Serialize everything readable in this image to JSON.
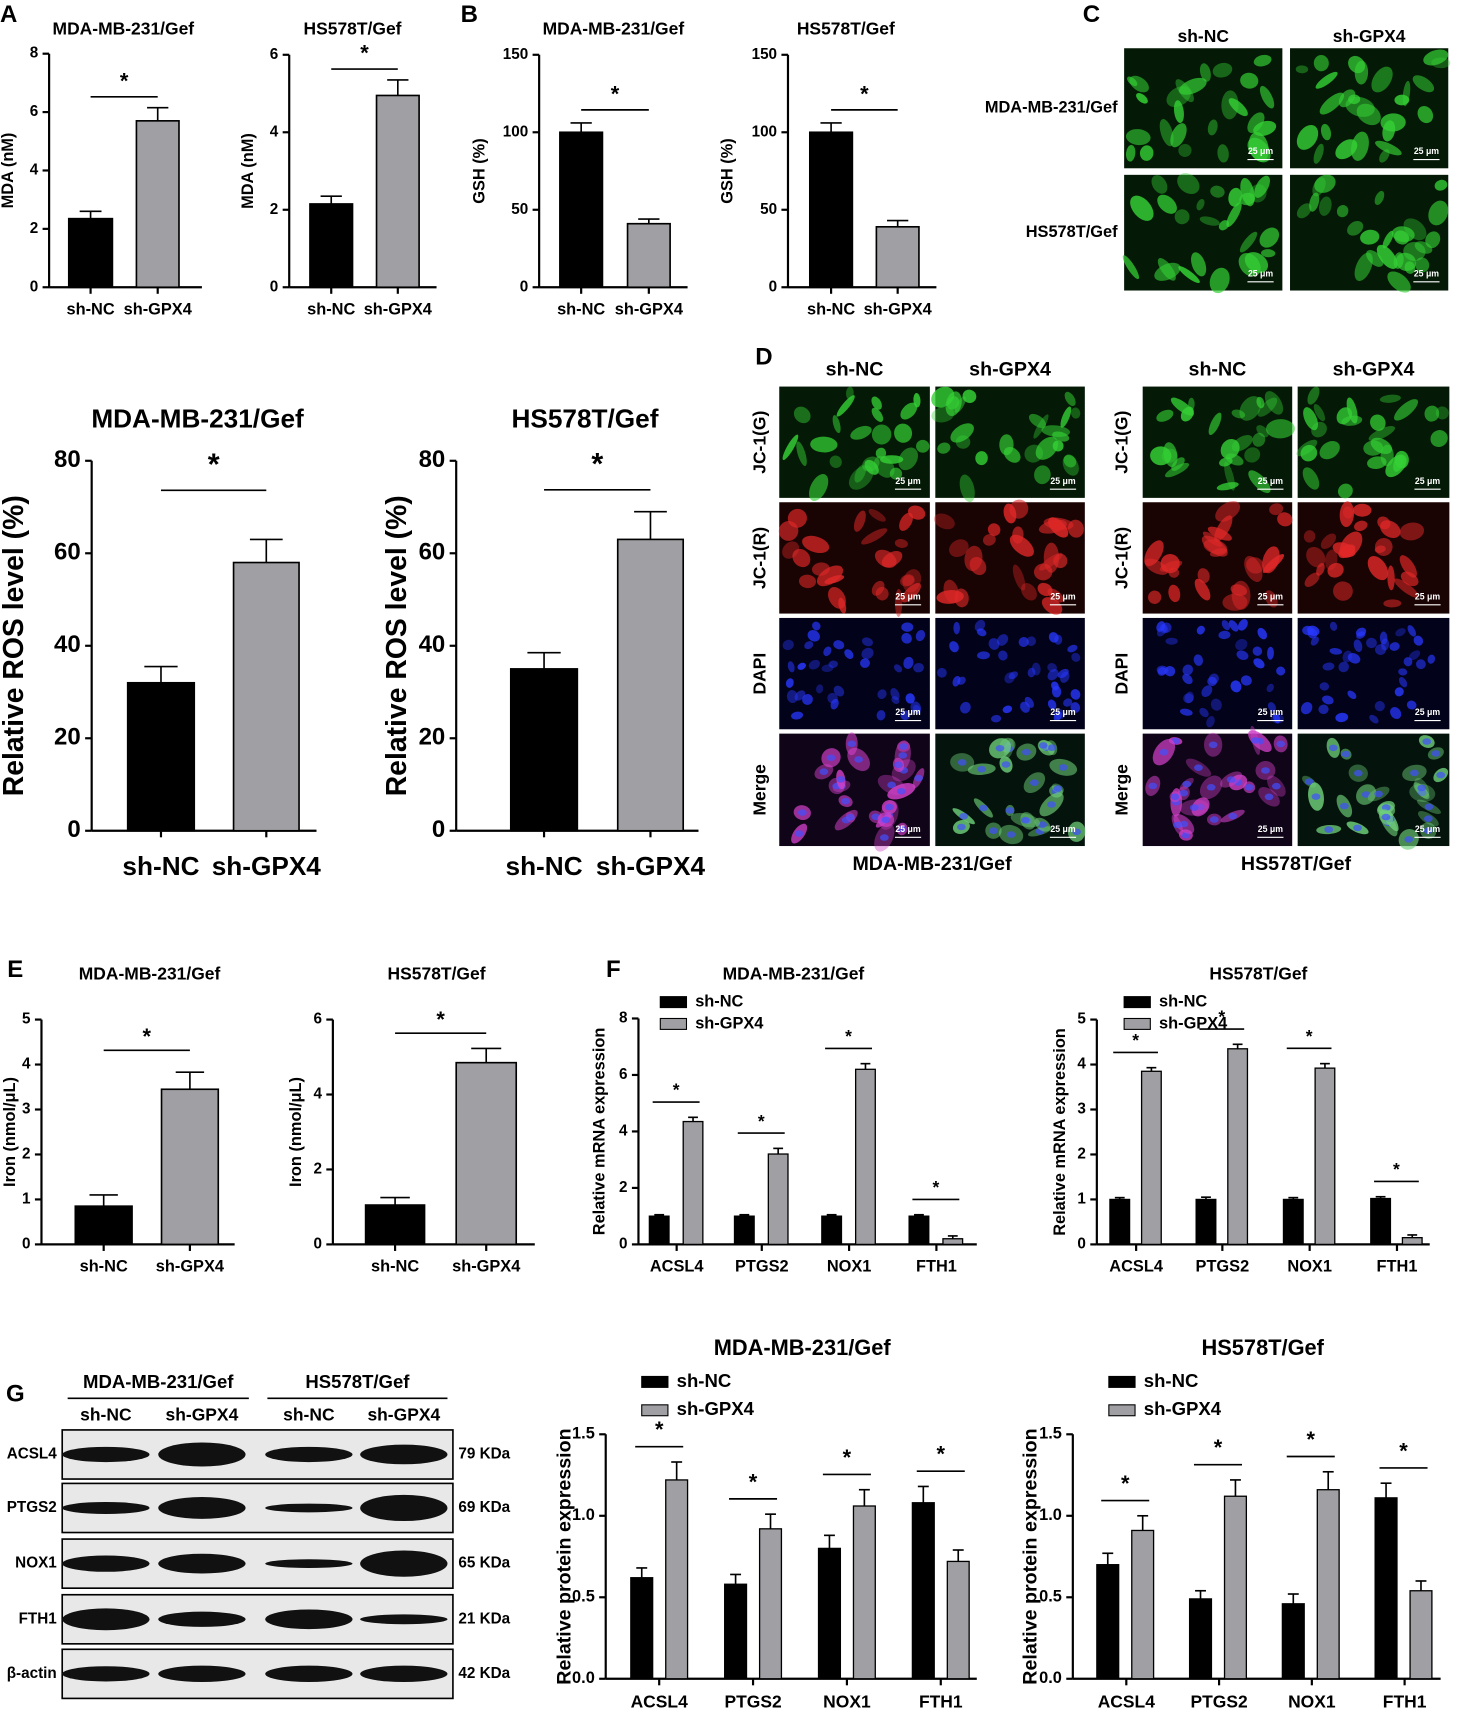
{
  "panel_labels": [
    "A",
    "B",
    "C",
    "D",
    "E",
    "F",
    "G"
  ],
  "chart_data": [
    {
      "type": "bar",
      "title": "MDA-MB-231/Gef",
      "y_label": "MDA (nM)",
      "categories": [
        "sh-NC",
        "sh-GPX4"
      ],
      "values": [
        2.35,
        5.7
      ],
      "errors": [
        0.25,
        0.45
      ],
      "colors": [
        "#000000",
        "#a0a0a4"
      ],
      "ylim": [
        0,
        8
      ],
      "yticks": [
        0,
        2,
        4,
        6,
        8
      ],
      "significance": "*"
    },
    {
      "type": "bar",
      "title": "HS578T/Gef",
      "y_label": "MDA (nM)",
      "categories": [
        "sh-NC",
        "sh-GPX4"
      ],
      "values": [
        2.15,
        4.95
      ],
      "errors": [
        0.2,
        0.4
      ],
      "colors": [
        "#000000",
        "#a0a0a4"
      ],
      "ylim": [
        0,
        6
      ],
      "yticks": [
        0,
        2,
        4,
        6
      ],
      "significance": "*"
    },
    {
      "type": "bar",
      "title": "MDA-MB-231/Gef",
      "y_label": "GSH (%)",
      "categories": [
        "sh-NC",
        "sh-GPX4"
      ],
      "values": [
        100,
        41
      ],
      "errors": [
        6,
        3
      ],
      "colors": [
        "#000000",
        "#a0a0a4"
      ],
      "ylim": [
        0,
        150
      ],
      "yticks": [
        0,
        50,
        100,
        150
      ],
      "significance": "*"
    },
    {
      "type": "bar",
      "title": "HS578T/Gef",
      "y_label": "GSH (%)",
      "categories": [
        "sh-NC",
        "sh-GPX4"
      ],
      "values": [
        100,
        39
      ],
      "errors": [
        6,
        4
      ],
      "colors": [
        "#000000",
        "#a0a0a4"
      ],
      "ylim": [
        0,
        150
      ],
      "yticks": [
        0,
        50,
        100,
        150
      ],
      "significance": "*"
    },
    {
      "type": "bar",
      "title": "MDA-MB-231/Gef",
      "y_label": "Relative ROS level (%)",
      "categories": [
        "sh-NC",
        "sh-GPX4"
      ],
      "values": [
        32,
        58
      ],
      "errors": [
        3.5,
        5
      ],
      "colors": [
        "#000000",
        "#a0a0a4"
      ],
      "ylim": [
        0,
        80
      ],
      "yticks": [
        0,
        20,
        40,
        60,
        80
      ],
      "significance": "*"
    },
    {
      "type": "bar",
      "title": "HS578T/Gef",
      "y_label": "Relative ROS level (%)",
      "categories": [
        "sh-NC",
        "sh-GPX4"
      ],
      "values": [
        35,
        63
      ],
      "errors": [
        3.5,
        6
      ],
      "colors": [
        "#000000",
        "#a0a0a4"
      ],
      "ylim": [
        0,
        80
      ],
      "yticks": [
        0,
        20,
        40,
        60,
        80
      ],
      "significance": "*"
    },
    {
      "type": "bar",
      "title": "MDA-MB-231/Gef",
      "y_label": "Iron (nmol/μL)",
      "categories": [
        "sh-NC",
        "sh-GPX4"
      ],
      "values": [
        0.85,
        3.45
      ],
      "errors": [
        0.25,
        0.38
      ],
      "colors": [
        "#000000",
        "#a0a0a4"
      ],
      "ylim": [
        0,
        5
      ],
      "yticks": [
        0,
        1,
        2,
        3,
        4,
        5
      ],
      "significance": "*"
    },
    {
      "type": "bar",
      "title": "HS578T/Gef",
      "y_label": "Iron (nmol/μL)",
      "categories": [
        "sh-NC",
        "sh-GPX4"
      ],
      "values": [
        1.05,
        4.85
      ],
      "errors": [
        0.2,
        0.38
      ],
      "colors": [
        "#000000",
        "#a0a0a4"
      ],
      "ylim": [
        0,
        6
      ],
      "yticks": [
        0,
        2,
        4,
        6
      ],
      "significance": "*"
    },
    {
      "type": "grouped_bar",
      "title": "MDA-MB-231/Gef",
      "y_label": "Relative mRNA expression",
      "categories": [
        "ACSL4",
        "PTGS2",
        "NOX1",
        "FTH1"
      ],
      "series": [
        {
          "name": "sh-NC",
          "color": "#000000",
          "values": [
            1,
            1,
            1,
            1
          ],
          "errors": [
            0.05,
            0.05,
            0.05,
            0.05
          ]
        },
        {
          "name": "sh-GPX4",
          "color": "#a0a0a4",
          "values": [
            4.35,
            3.2,
            6.2,
            0.2
          ],
          "errors": [
            0.15,
            0.2,
            0.2,
            0.1
          ]
        }
      ],
      "ylim": [
        0,
        8
      ],
      "yticks": [
        0,
        2,
        4,
        6,
        8
      ],
      "significance": [
        "*",
        "*",
        "*",
        "*"
      ]
    },
    {
      "type": "grouped_bar",
      "title": "HS578T/Gef",
      "y_label": "Relative mRNA expression",
      "categories": [
        "ACSL4",
        "PTGS2",
        "NOX1",
        "FTH1"
      ],
      "series": [
        {
          "name": "sh-NC",
          "color": "#000000",
          "values": [
            1,
            1,
            1,
            1.02
          ],
          "errors": [
            0.04,
            0.05,
            0.04,
            0.04
          ]
        },
        {
          "name": "sh-GPX4",
          "color": "#a0a0a4",
          "values": [
            3.85,
            4.35,
            3.92,
            0.15
          ],
          "errors": [
            0.08,
            0.1,
            0.1,
            0.06
          ]
        }
      ],
      "ylim": [
        0,
        5
      ],
      "yticks": [
        0,
        1,
        2,
        3,
        4,
        5
      ],
      "significance": [
        "*",
        "*",
        "*",
        "*"
      ]
    },
    {
      "type": "grouped_bar",
      "title": "MDA-MB-231/Gef",
      "y_label": "Relative protein expression",
      "categories": [
        "ACSL4",
        "PTGS2",
        "NOX1",
        "FTH1"
      ],
      "series": [
        {
          "name": "sh-NC",
          "color": "#000000",
          "values": [
            0.62,
            0.58,
            0.8,
            1.08
          ],
          "errors": [
            0.06,
            0.06,
            0.08,
            0.1
          ]
        },
        {
          "name": "sh-GPX4",
          "color": "#a0a0a4",
          "values": [
            1.22,
            0.92,
            1.06,
            0.72
          ],
          "errors": [
            0.11,
            0.09,
            0.1,
            0.07
          ]
        }
      ],
      "ylim": [
        0,
        1.5
      ],
      "yticks": [
        {
          "value": 0,
          "label": "0.0"
        },
        0.5,
        {
          "value": 1,
          "label": "1.0"
        },
        1.5
      ],
      "significance": [
        "*",
        "*",
        "*",
        "*"
      ]
    },
    {
      "type": "grouped_bar",
      "title": "HS578T/Gef",
      "y_label": "Relative protein expression",
      "categories": [
        "ACSL4",
        "PTGS2",
        "NOX1",
        "FTH1"
      ],
      "series": [
        {
          "name": "sh-NC",
          "color": "#000000",
          "values": [
            0.7,
            0.49,
            0.46,
            1.11
          ],
          "errors": [
            0.07,
            0.05,
            0.06,
            0.09
          ]
        },
        {
          "name": "sh-GPX4",
          "color": "#a0a0a4",
          "values": [
            0.91,
            1.12,
            1.16,
            0.54
          ],
          "errors": [
            0.09,
            0.1,
            0.11,
            0.06
          ]
        }
      ],
      "ylim": [
        0,
        1.5
      ],
      "yticks": [
        {
          "value": 0,
          "label": "0.0"
        },
        0.5,
        {
          "value": 1,
          "label": "1.0"
        },
        1.5
      ],
      "significance": [
        "*",
        "*",
        "*",
        "*"
      ]
    }
  ],
  "panel_c": {
    "columns": [
      "sh-NC",
      "sh-GPX4"
    ],
    "rows": [
      "MDA-MB-231/Gef",
      "HS578T/Gef"
    ],
    "scale_bar": "25 μm"
  },
  "panel_d": {
    "groups": [
      "MDA-MB-231/Gef",
      "HS578T/Gef"
    ],
    "columns": [
      "sh-NC",
      "sh-GPX4"
    ],
    "rows": [
      "JC-1(G)",
      "JC-1(R)",
      "DAPI",
      "Merge"
    ],
    "scale_bar": "25 μm"
  },
  "panel_g": {
    "groups": [
      "MDA-MB-231/Gef",
      "HS578T/Gef"
    ],
    "lanes": [
      "sh-NC",
      "sh-GPX4",
      "sh-NC",
      "sh-GPX4"
    ],
    "proteins": [
      "ACSL4",
      "PTGS2",
      "NOX1",
      "FTH1",
      "β-actin"
    ],
    "sizes": [
      "79 KDa",
      "69 KDa",
      "65 KDa",
      "21 KDa",
      "42 KDa"
    ]
  }
}
